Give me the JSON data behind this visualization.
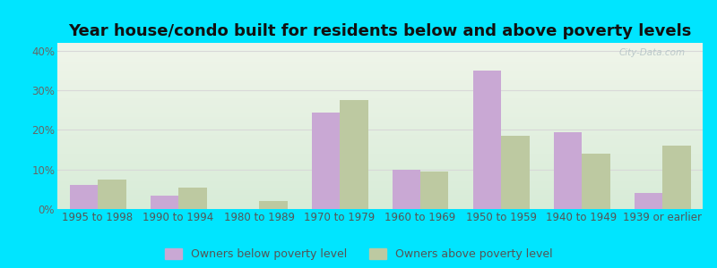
{
  "title": "Year house/condo built for residents below and above poverty levels",
  "categories": [
    "1995 to 1998",
    "1990 to 1994",
    "1980 to 1989",
    "1970 to 1979",
    "1960 to 1969",
    "1950 to 1959",
    "1940 to 1949",
    "1939 or earlier"
  ],
  "below_poverty": [
    6.0,
    3.5,
    0.0,
    24.5,
    10.0,
    35.0,
    19.5,
    4.0
  ],
  "above_poverty": [
    7.5,
    5.5,
    2.0,
    27.5,
    9.5,
    18.5,
    14.0,
    16.0
  ],
  "below_color": "#c9a8d4",
  "above_color": "#bdc9a1",
  "ylim": [
    0,
    42
  ],
  "yticks": [
    0,
    10,
    20,
    30,
    40
  ],
  "ytick_labels": [
    "0%",
    "10%",
    "20%",
    "30%",
    "40%"
  ],
  "bar_width": 0.35,
  "outer_background": "#00e5ff",
  "bg_top_color": "#f0f5ea",
  "bg_bottom_color": "#d8ecd8",
  "legend_below_label": "Owners below poverty level",
  "legend_above_label": "Owners above poverty level",
  "grid_color": "#d8d8d8",
  "title_fontsize": 13,
  "tick_fontsize": 8.5,
  "legend_fontsize": 9,
  "watermark": "City-Data.com"
}
